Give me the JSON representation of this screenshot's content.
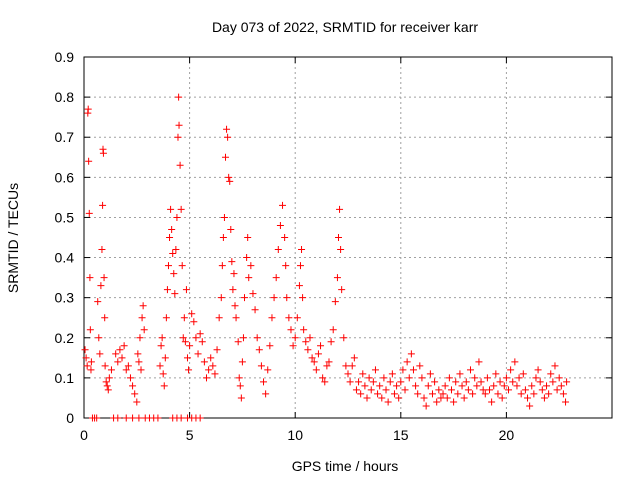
{
  "chart_data": {
    "type": "scatter",
    "title": "Day 073 of 2022, SRMTID for receiver karr",
    "xlabel": "GPS time / hours",
    "ylabel": "SRMTID / TECUs",
    "xlim": [
      0,
      25
    ],
    "ylim": [
      0,
      0.9
    ],
    "xticks": [
      "0",
      "5",
      "10",
      "15",
      "20"
    ],
    "yticks": [
      "0",
      "0.1",
      "0.2",
      "0.3",
      "0.4",
      "0.5",
      "0.6",
      "0.7",
      "0.8",
      "0.9"
    ],
    "grid": true,
    "marker": "plus",
    "color": "#ff0000",
    "series": [
      {
        "name": "SRMTID",
        "points": [
          [
            0.05,
            0.17
          ],
          [
            0.1,
            0.15
          ],
          [
            0.15,
            0.13
          ],
          [
            0.18,
            0.76
          ],
          [
            0.2,
            0.77
          ],
          [
            0.22,
            0.64
          ],
          [
            0.25,
            0.51
          ],
          [
            0.28,
            0.35
          ],
          [
            0.3,
            0.22
          ],
          [
            0.33,
            0.12
          ],
          [
            0.35,
            0.14
          ],
          [
            0.4,
            0.0
          ],
          [
            0.5,
            0.0
          ],
          [
            0.6,
            0.0
          ],
          [
            0.65,
            0.29
          ],
          [
            0.7,
            0.2
          ],
          [
            0.75,
            0.16
          ],
          [
            0.8,
            0.33
          ],
          [
            0.85,
            0.42
          ],
          [
            0.88,
            0.53
          ],
          [
            0.9,
            0.67
          ],
          [
            0.92,
            0.66
          ],
          [
            0.95,
            0.35
          ],
          [
            0.98,
            0.25
          ],
          [
            1.0,
            0.13
          ],
          [
            1.05,
            0.09
          ],
          [
            1.1,
            0.08
          ],
          [
            1.15,
            0.07
          ],
          [
            1.2,
            0.1
          ],
          [
            1.3,
            0.12
          ],
          [
            1.5,
            0.16
          ],
          [
            1.6,
            0.14
          ],
          [
            1.7,
            0.17
          ],
          [
            1.8,
            0.15
          ],
          [
            1.9,
            0.18
          ],
          [
            2.0,
            0.12
          ],
          [
            2.1,
            0.13
          ],
          [
            2.2,
            0.1
          ],
          [
            2.3,
            0.08
          ],
          [
            2.4,
            0.06
          ],
          [
            2.5,
            0.04
          ],
          [
            2.55,
            0.16
          ],
          [
            2.6,
            0.14
          ],
          [
            2.65,
            0.2
          ],
          [
            2.7,
            0.12
          ],
          [
            2.75,
            0.25
          ],
          [
            2.8,
            0.28
          ],
          [
            2.85,
            0.22
          ],
          [
            1.4,
            0.0
          ],
          [
            1.6,
            0.0
          ],
          [
            2.0,
            0.0
          ],
          [
            2.3,
            0.0
          ],
          [
            2.6,
            0.0
          ],
          [
            2.9,
            0.0
          ],
          [
            3.1,
            0.0
          ],
          [
            3.3,
            0.0
          ],
          [
            3.5,
            0.0
          ],
          [
            3.6,
            0.13
          ],
          [
            3.65,
            0.18
          ],
          [
            3.7,
            0.2
          ],
          [
            3.75,
            0.11
          ],
          [
            3.8,
            0.08
          ],
          [
            3.85,
            0.15
          ],
          [
            3.9,
            0.25
          ],
          [
            3.95,
            0.32
          ],
          [
            4.0,
            0.38
          ],
          [
            4.05,
            0.45
          ],
          [
            4.1,
            0.52
          ],
          [
            4.15,
            0.47
          ],
          [
            4.2,
            0.41
          ],
          [
            4.25,
            0.36
          ],
          [
            4.3,
            0.31
          ],
          [
            4.35,
            0.42
          ],
          [
            4.4,
            0.5
          ],
          [
            4.45,
            0.7
          ],
          [
            4.48,
            0.8
          ],
          [
            4.5,
            0.73
          ],
          [
            4.55,
            0.63
          ],
          [
            4.6,
            0.52
          ],
          [
            4.65,
            0.38
          ],
          [
            4.7,
            0.2
          ],
          [
            4.75,
            0.25
          ],
          [
            4.8,
            0.19
          ],
          [
            4.85,
            0.32
          ],
          [
            4.9,
            0.15
          ],
          [
            4.95,
            0.12
          ],
          [
            5.0,
            0.18
          ],
          [
            5.1,
            0.26
          ],
          [
            5.2,
            0.24
          ],
          [
            5.3,
            0.2
          ],
          [
            5.4,
            0.16
          ],
          [
            5.5,
            0.21
          ],
          [
            5.6,
            0.19
          ],
          [
            4.2,
            0.0
          ],
          [
            4.4,
            0.0
          ],
          [
            4.6,
            0.0
          ],
          [
            4.9,
            0.0
          ],
          [
            5.1,
            0.0
          ],
          [
            5.3,
            0.0
          ],
          [
            5.5,
            0.0
          ],
          [
            5.7,
            0.14
          ],
          [
            5.8,
            0.1
          ],
          [
            5.9,
            0.12
          ],
          [
            6.0,
            0.15
          ],
          [
            6.1,
            0.13
          ],
          [
            6.2,
            0.11
          ],
          [
            6.3,
            0.17
          ],
          [
            6.4,
            0.25
          ],
          [
            6.5,
            0.3
          ],
          [
            6.55,
            0.38
          ],
          [
            6.6,
            0.45
          ],
          [
            6.65,
            0.5
          ],
          [
            6.7,
            0.65
          ],
          [
            6.75,
            0.72
          ],
          [
            6.8,
            0.7
          ],
          [
            6.85,
            0.6
          ],
          [
            6.9,
            0.59
          ],
          [
            6.95,
            0.47
          ],
          [
            7.0,
            0.39
          ],
          [
            7.05,
            0.32
          ],
          [
            7.1,
            0.36
          ],
          [
            7.15,
            0.28
          ],
          [
            7.2,
            0.25
          ],
          [
            7.3,
            0.19
          ],
          [
            7.35,
            0.1
          ],
          [
            7.4,
            0.08
          ],
          [
            7.45,
            0.05
          ],
          [
            7.5,
            0.14
          ],
          [
            7.55,
            0.2
          ],
          [
            7.6,
            0.3
          ],
          [
            7.7,
            0.4
          ],
          [
            7.75,
            0.45
          ],
          [
            7.8,
            0.35
          ],
          [
            7.9,
            0.38
          ],
          [
            8.0,
            0.31
          ],
          [
            8.1,
            0.27
          ],
          [
            8.2,
            0.2
          ],
          [
            8.3,
            0.17
          ],
          [
            8.4,
            0.13
          ],
          [
            8.5,
            0.09
          ],
          [
            8.6,
            0.06
          ],
          [
            8.7,
            0.12
          ],
          [
            8.8,
            0.18
          ],
          [
            8.9,
            0.25
          ],
          [
            9.0,
            0.3
          ],
          [
            9.1,
            0.35
          ],
          [
            9.2,
            0.42
          ],
          [
            9.3,
            0.48
          ],
          [
            9.4,
            0.53
          ],
          [
            9.5,
            0.45
          ],
          [
            9.55,
            0.38
          ],
          [
            9.6,
            0.3
          ],
          [
            9.7,
            0.25
          ],
          [
            9.8,
            0.22
          ],
          [
            9.9,
            0.18
          ],
          [
            10.0,
            0.2
          ],
          [
            10.1,
            0.25
          ],
          [
            10.2,
            0.33
          ],
          [
            10.25,
            0.38
          ],
          [
            10.3,
            0.42
          ],
          [
            10.35,
            0.3
          ],
          [
            10.4,
            0.22
          ],
          [
            10.5,
            0.19
          ],
          [
            10.6,
            0.17
          ],
          [
            10.7,
            0.2
          ],
          [
            10.8,
            0.15
          ],
          [
            10.9,
            0.14
          ],
          [
            11.0,
            0.12
          ],
          [
            11.1,
            0.16
          ],
          [
            11.2,
            0.18
          ],
          [
            11.3,
            0.1
          ],
          [
            11.4,
            0.09
          ],
          [
            11.5,
            0.13
          ],
          [
            11.6,
            0.14
          ],
          [
            11.7,
            0.19
          ],
          [
            11.8,
            0.22
          ],
          [
            11.9,
            0.29
          ],
          [
            12.0,
            0.35
          ],
          [
            12.05,
            0.45
          ],
          [
            12.1,
            0.52
          ],
          [
            12.15,
            0.42
          ],
          [
            12.2,
            0.32
          ],
          [
            12.3,
            0.2
          ],
          [
            12.4,
            0.13
          ],
          [
            12.5,
            0.11
          ],
          [
            12.6,
            0.09
          ],
          [
            12.7,
            0.13
          ],
          [
            12.8,
            0.15
          ],
          [
            12.9,
            0.07
          ],
          [
            13.0,
            0.09
          ],
          [
            13.1,
            0.06
          ],
          [
            13.2,
            0.11
          ],
          [
            13.3,
            0.08
          ],
          [
            13.4,
            0.05
          ],
          [
            13.5,
            0.1
          ],
          [
            13.6,
            0.07
          ],
          [
            13.7,
            0.09
          ],
          [
            13.8,
            0.12
          ],
          [
            13.9,
            0.06
          ],
          [
            14.0,
            0.08
          ],
          [
            14.1,
            0.05
          ],
          [
            14.2,
            0.1
          ],
          [
            14.3,
            0.07
          ],
          [
            14.4,
            0.04
          ],
          [
            14.5,
            0.09
          ],
          [
            14.6,
            0.11
          ],
          [
            14.7,
            0.06
          ],
          [
            14.8,
            0.08
          ],
          [
            14.9,
            0.05
          ],
          [
            15.0,
            0.09
          ],
          [
            15.1,
            0.12
          ],
          [
            15.2,
            0.07
          ],
          [
            15.3,
            0.14
          ],
          [
            15.4,
            0.1
          ],
          [
            15.5,
            0.16
          ],
          [
            15.6,
            0.12
          ],
          [
            15.7,
            0.08
          ],
          [
            15.8,
            0.06
          ],
          [
            15.9,
            0.13
          ],
          [
            16.0,
            0.1
          ],
          [
            16.1,
            0.05
          ],
          [
            16.2,
            0.03
          ],
          [
            16.3,
            0.08
          ],
          [
            16.4,
            0.11
          ],
          [
            16.5,
            0.06
          ],
          [
            16.6,
            0.09
          ],
          [
            16.7,
            0.04
          ],
          [
            16.8,
            0.07
          ],
          [
            16.9,
            0.05
          ],
          [
            17.0,
            0.06
          ],
          [
            17.1,
            0.08
          ],
          [
            17.2,
            0.05
          ],
          [
            17.3,
            0.1
          ],
          [
            17.4,
            0.07
          ],
          [
            17.5,
            0.04
          ],
          [
            17.6,
            0.09
          ],
          [
            17.7,
            0.06
          ],
          [
            17.8,
            0.11
          ],
          [
            17.9,
            0.08
          ],
          [
            18.0,
            0.05
          ],
          [
            18.1,
            0.09
          ],
          [
            18.2,
            0.07
          ],
          [
            18.3,
            0.12
          ],
          [
            18.4,
            0.06
          ],
          [
            18.5,
            0.1
          ],
          [
            18.6,
            0.08
          ],
          [
            18.7,
            0.14
          ],
          [
            18.8,
            0.09
          ],
          [
            18.9,
            0.07
          ],
          [
            19.0,
            0.06
          ],
          [
            19.1,
            0.1
          ],
          [
            19.2,
            0.07
          ],
          [
            19.3,
            0.04
          ],
          [
            19.4,
            0.08
          ],
          [
            19.5,
            0.11
          ],
          [
            19.6,
            0.06
          ],
          [
            19.7,
            0.09
          ],
          [
            19.8,
            0.05
          ],
          [
            19.9,
            0.08
          ],
          [
            20.0,
            0.1
          ],
          [
            20.1,
            0.07
          ],
          [
            20.2,
            0.12
          ],
          [
            20.3,
            0.09
          ],
          [
            20.4,
            0.14
          ],
          [
            20.5,
            0.08
          ],
          [
            20.6,
            0.1
          ],
          [
            20.7,
            0.06
          ],
          [
            20.8,
            0.11
          ],
          [
            20.9,
            0.07
          ],
          [
            21.0,
            0.05
          ],
          [
            21.1,
            0.03
          ],
          [
            21.2,
            0.08
          ],
          [
            21.3,
            0.06
          ],
          [
            21.4,
            0.1
          ],
          [
            21.5,
            0.12
          ],
          [
            21.6,
            0.09
          ],
          [
            21.7,
            0.07
          ],
          [
            21.8,
            0.05
          ],
          [
            21.9,
            0.08
          ],
          [
            22.0,
            0.06
          ],
          [
            22.1,
            0.11
          ],
          [
            22.2,
            0.09
          ],
          [
            22.3,
            0.13
          ],
          [
            22.4,
            0.07
          ],
          [
            22.5,
            0.1
          ],
          [
            22.6,
            0.08
          ],
          [
            22.7,
            0.06
          ],
          [
            22.8,
            0.04
          ],
          [
            22.85,
            0.09
          ]
        ]
      }
    ]
  }
}
